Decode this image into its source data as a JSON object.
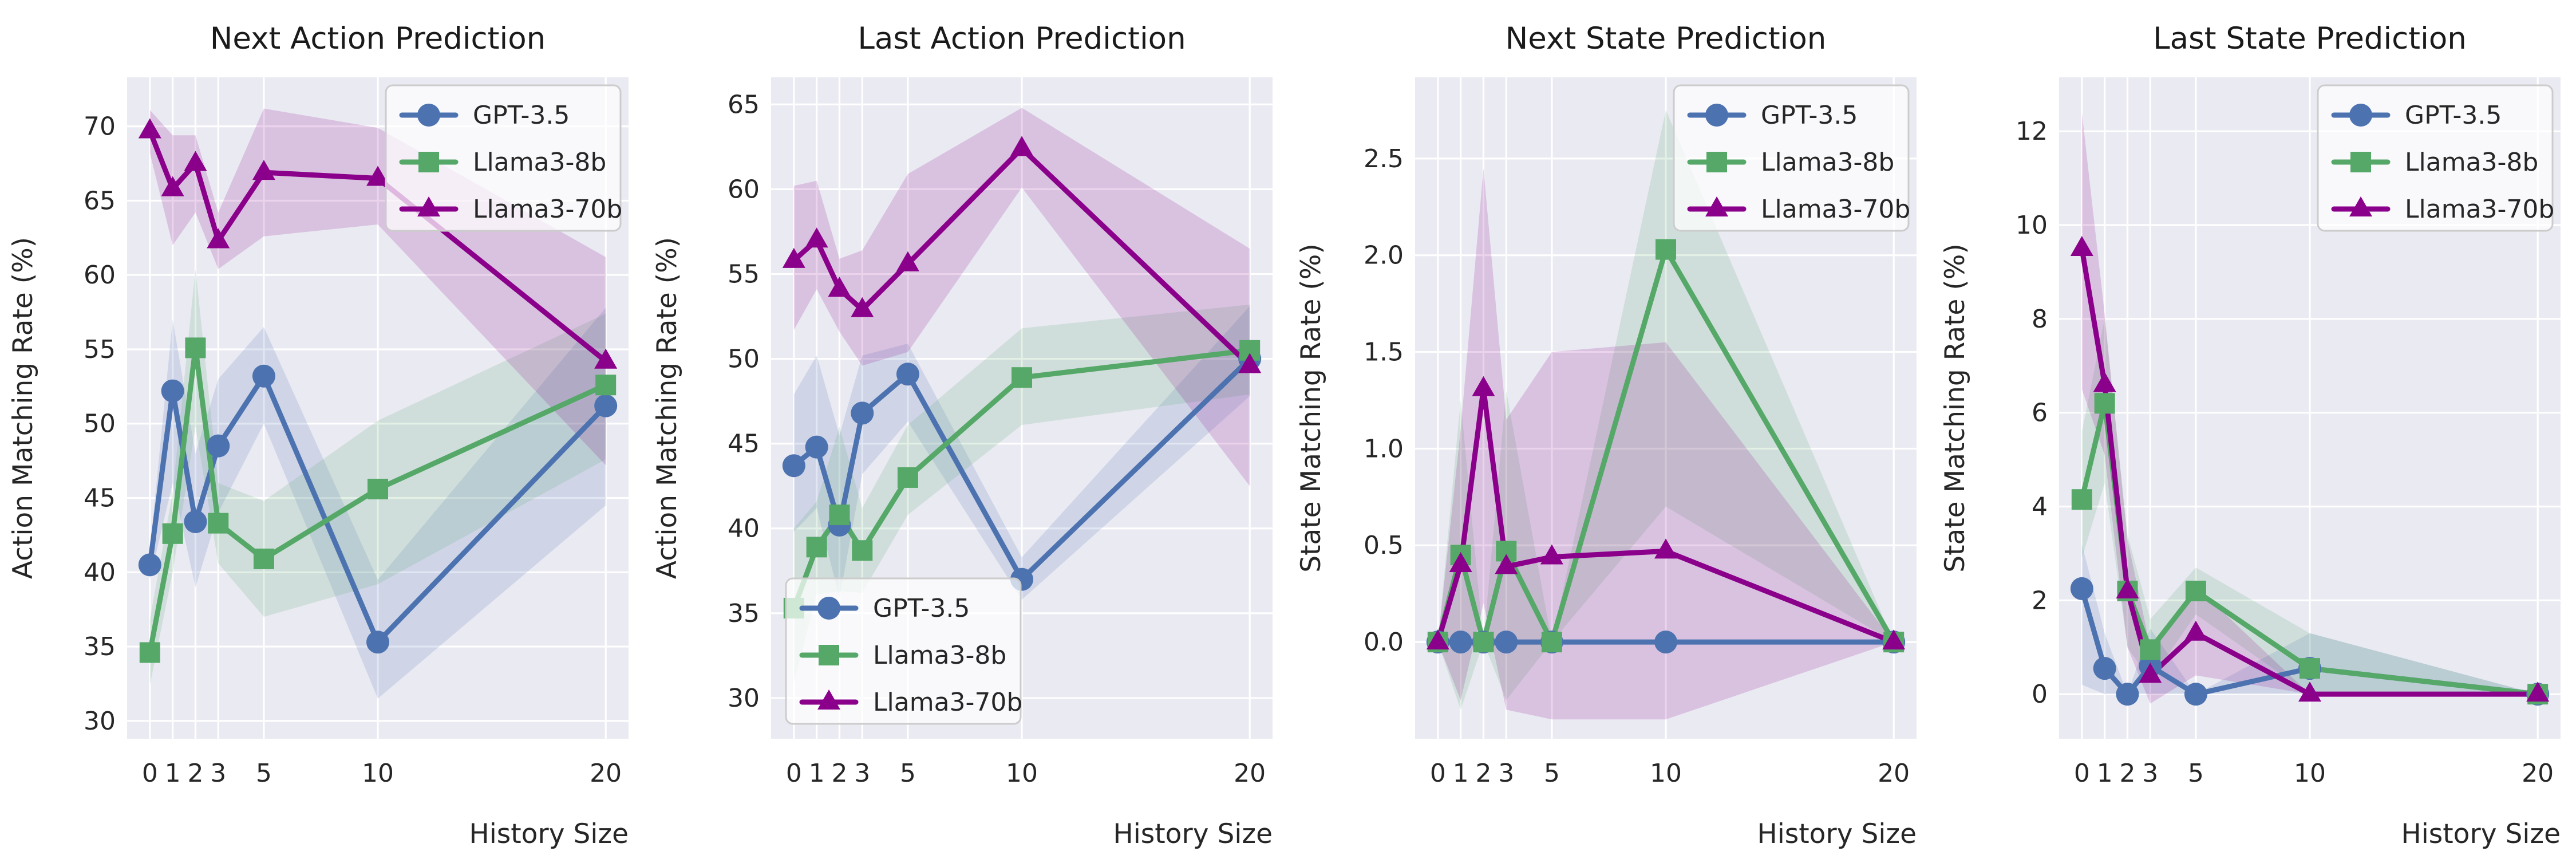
{
  "styles": {
    "axes_bg": "#EAEAF2",
    "grid_color": "#FFFFFF",
    "text_color": "#262626",
    "legend_bg": "rgba(255,255,255,0.72)",
    "legend_border": "#CCCCCC",
    "band_alpha": 0.17
  },
  "legend": {
    "entries": [
      "GPT-3.5",
      "Llama3-8b",
      "Llama3-70b"
    ]
  },
  "chart_data": [
    {
      "type": "line",
      "title": "Next Action Prediction",
      "xlabel": "History Size",
      "ylabel": "Action Matching Rate (%)",
      "x": [
        0,
        1,
        2,
        3,
        5,
        10,
        20
      ],
      "xtick_labels": [
        "0",
        "1",
        "2",
        "3",
        "5",
        "10",
        "20"
      ],
      "xlim": [
        -1,
        21
      ],
      "ylim": [
        28.8,
        73.3
      ],
      "yticks": [
        30,
        35,
        40,
        45,
        50,
        55,
        60,
        65,
        70
      ],
      "ytick_labels": [
        "30",
        "35",
        "40",
        "45",
        "50",
        "55",
        "60",
        "65",
        "70"
      ],
      "grid": true,
      "legend_pos": "top-right",
      "series": [
        {
          "name": "GPT-3.5",
          "color": "#4C72B0",
          "marker": "circle",
          "values": [
            40.5,
            52.2,
            43.4,
            48.5,
            53.2,
            35.3,
            51.2
          ],
          "band_lo": [
            39.5,
            46.0,
            39.0,
            44.0,
            50.0,
            31.5,
            44.5
          ],
          "band_hi": [
            41.5,
            57.0,
            48.0,
            53.0,
            56.5,
            39.5,
            57.8
          ]
        },
        {
          "name": "Llama3-8b",
          "color": "#55A868",
          "marker": "square",
          "values": [
            34.6,
            42.6,
            55.1,
            43.3,
            40.9,
            45.6,
            52.6
          ],
          "band_lo": [
            32.4,
            40.0,
            49.8,
            40.6,
            37.0,
            39.2,
            47.6
          ],
          "band_hi": [
            36.8,
            45.4,
            60.4,
            46.0,
            44.8,
            50.2,
            57.4
          ]
        },
        {
          "name": "Llama3-70b",
          "color": "#8B008B",
          "marker": "triangle",
          "values": [
            69.7,
            65.8,
            67.5,
            62.3,
            66.9,
            66.5,
            54.2
          ],
          "band_lo": [
            68.2,
            62.0,
            64.2,
            60.4,
            62.6,
            63.4,
            47.2
          ],
          "band_hi": [
            71.1,
            69.4,
            69.4,
            64.2,
            71.2,
            69.9,
            61.2
          ]
        }
      ]
    },
    {
      "type": "line",
      "title": "Last Action Prediction",
      "xlabel": "History Size",
      "ylabel": "Action Matching Rate (%)",
      "x": [
        0,
        1,
        2,
        3,
        5,
        10,
        20
      ],
      "xtick_labels": [
        "0",
        "1",
        "2",
        "3",
        "5",
        "10",
        "20"
      ],
      "xlim": [
        -1,
        21
      ],
      "ylim": [
        27.6,
        66.6
      ],
      "yticks": [
        30,
        35,
        40,
        45,
        50,
        55,
        60,
        65
      ],
      "ytick_labels": [
        "30",
        "35",
        "40",
        "45",
        "50",
        "55",
        "60",
        "65"
      ],
      "grid": true,
      "legend_pos": "bottom-left",
      "series": [
        {
          "name": "GPT-3.5",
          "color": "#4C72B0",
          "marker": "circle",
          "values": [
            43.7,
            44.8,
            40.2,
            46.8,
            49.1,
            37.0,
            50.0
          ],
          "band_lo": [
            39.8,
            41.2,
            35.9,
            43.2,
            46.3,
            35.8,
            47.8
          ],
          "band_hi": [
            47.9,
            50.2,
            45.5,
            50.2,
            50.9,
            38.3,
            53.1
          ]
        },
        {
          "name": "Llama3-8b",
          "color": "#55A868",
          "marker": "square",
          "values": [
            35.3,
            38.9,
            40.8,
            38.7,
            43.0,
            48.9,
            50.5
          ],
          "band_lo": [
            30.9,
            36.1,
            36.3,
            36.2,
            40.8,
            46.1,
            47.9
          ],
          "band_hi": [
            40.0,
            41.6,
            46.0,
            41.2,
            46.1,
            51.8,
            53.2
          ]
        },
        {
          "name": "Llama3-70b",
          "color": "#8B008B",
          "marker": "triangle",
          "values": [
            55.8,
            57.0,
            54.1,
            52.9,
            55.6,
            62.4,
            49.6
          ],
          "band_lo": [
            51.7,
            54.1,
            51.6,
            49.6,
            50.4,
            60.1,
            42.5
          ],
          "band_hi": [
            60.2,
            60.5,
            55.9,
            56.4,
            60.9,
            64.8,
            56.5
          ]
        }
      ]
    },
    {
      "type": "line",
      "title": "Next State Prediction",
      "xlabel": "History Size",
      "ylabel": "State Matching Rate (%)",
      "x": [
        0,
        1,
        2,
        3,
        5,
        10,
        20
      ],
      "xtick_labels": [
        "0",
        "1",
        "2",
        "3",
        "5",
        "10",
        "20"
      ],
      "xlim": [
        -1,
        21
      ],
      "ylim": [
        -0.5,
        2.92
      ],
      "yticks": [
        0.0,
        0.5,
        1.0,
        1.5,
        2.0,
        2.5
      ],
      "ytick_labels": [
        "0.0",
        "0.5",
        "1.0",
        "1.5",
        "2.0",
        "2.5"
      ],
      "grid": true,
      "legend_pos": "top-right",
      "series": [
        {
          "name": "GPT-3.5",
          "color": "#4C72B0",
          "marker": "circle",
          "values": [
            0.0,
            0.0,
            0.0,
            0.0,
            0.0,
            0.0,
            0.0
          ],
          "band_lo": [
            0.0,
            0.0,
            0.0,
            0.0,
            0.0,
            0.0,
            0.0
          ],
          "band_hi": [
            0.0,
            0.0,
            0.0,
            0.0,
            0.0,
            0.0,
            0.0
          ]
        },
        {
          "name": "Llama3-8b",
          "color": "#55A868",
          "marker": "square",
          "values": [
            0.0,
            0.45,
            0.0,
            0.47,
            0.0,
            2.03,
            0.0
          ],
          "band_lo": [
            0.0,
            -0.35,
            0.0,
            -0.3,
            0.0,
            0.7,
            0.0
          ],
          "band_hi": [
            0.0,
            1.25,
            0.0,
            1.3,
            0.0,
            2.75,
            0.0
          ]
        },
        {
          "name": "Llama3-70b",
          "color": "#8B008B",
          "marker": "triangle",
          "values": [
            0.0,
            0.4,
            1.31,
            0.39,
            0.44,
            0.47,
            0.0
          ],
          "band_lo": [
            0.0,
            -0.3,
            0.2,
            -0.35,
            -0.4,
            -0.4,
            0.0
          ],
          "band_hi": [
            0.0,
            1.1,
            2.45,
            1.15,
            1.5,
            1.55,
            0.0
          ]
        }
      ]
    },
    {
      "type": "line",
      "title": "Last State Prediction",
      "xlabel": "History Size",
      "ylabel": "State Matching Rate (%)",
      "x": [
        0,
        1,
        2,
        3,
        5,
        10,
        20
      ],
      "xtick_labels": [
        "0",
        "1",
        "2",
        "3",
        "5",
        "10",
        "20"
      ],
      "xlim": [
        -1,
        21
      ],
      "ylim": [
        -0.95,
        13.15
      ],
      "yticks": [
        0,
        2,
        4,
        6,
        8,
        10,
        12
      ],
      "ytick_labels": [
        "0",
        "2",
        "4",
        "6",
        "8",
        "10",
        "12"
      ],
      "grid": true,
      "legend_pos": "top-right",
      "series": [
        {
          "name": "GPT-3.5",
          "color": "#4C72B0",
          "marker": "circle",
          "values": [
            2.25,
            0.55,
            0.0,
            0.6,
            0.0,
            0.55,
            0.0
          ],
          "band_lo": [
            0.2,
            0.0,
            0.0,
            0.0,
            0.0,
            0.0,
            0.0
          ],
          "band_hi": [
            3.2,
            1.3,
            0.0,
            1.4,
            0.0,
            1.3,
            0.0
          ]
        },
        {
          "name": "Llama3-8b",
          "color": "#55A868",
          "marker": "square",
          "values": [
            4.15,
            6.2,
            2.2,
            0.95,
            2.2,
            0.55,
            0.0
          ],
          "band_lo": [
            2.9,
            4.5,
            1.0,
            0.3,
            1.7,
            0.0,
            0.0
          ],
          "band_hi": [
            5.6,
            8.0,
            3.4,
            1.6,
            2.7,
            1.3,
            0.0
          ]
        },
        {
          "name": "Llama3-70b",
          "color": "#8B008B",
          "marker": "triangle",
          "values": [
            9.5,
            6.6,
            2.2,
            0.4,
            1.3,
            0.0,
            0.0
          ],
          "band_lo": [
            6.5,
            5.1,
            1.0,
            -0.2,
            0.4,
            0.0,
            0.0
          ],
          "band_hi": [
            12.4,
            8.1,
            3.3,
            1.0,
            2.3,
            0.0,
            0.0
          ]
        }
      ]
    }
  ]
}
